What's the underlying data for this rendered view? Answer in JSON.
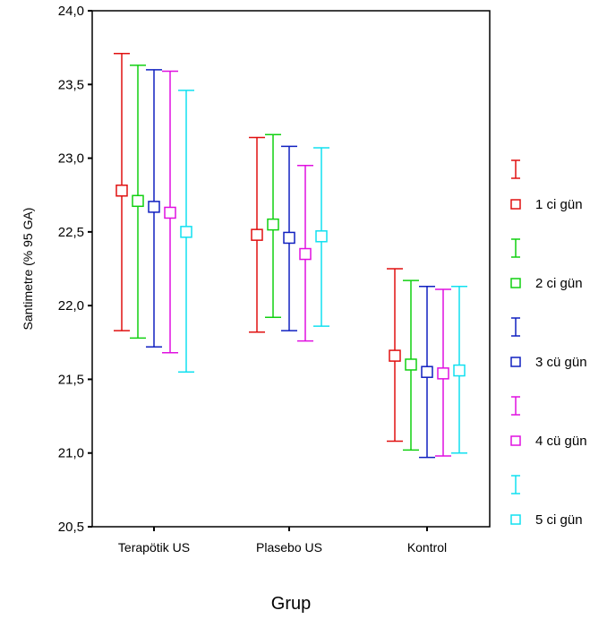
{
  "chart_data": {
    "type": "errorbar",
    "xlabel": "Grup",
    "ylabel": "Santimetre (% 95 GA)",
    "categories": [
      "Terapötik US",
      "Plasebo US",
      "Kontrol"
    ],
    "ylim": [
      20.5,
      24.0
    ],
    "yticks": [
      "20,5",
      "21,0",
      "21,5",
      "22,0",
      "22,5",
      "23,0",
      "23,5",
      "24,0"
    ],
    "grid": false,
    "legend_position": "right",
    "series": [
      {
        "name": "1 ci gün",
        "color": "#e01010",
        "mean": [
          22.78,
          22.48,
          21.66
        ],
        "lower": [
          21.83,
          21.82,
          21.08
        ],
        "upper": [
          23.71,
          23.14,
          22.25
        ]
      },
      {
        "name": "2 ci gün",
        "color": "#10d010",
        "mean": [
          22.71,
          22.55,
          21.6
        ],
        "lower": [
          21.78,
          21.92,
          21.02
        ],
        "upper": [
          23.63,
          23.16,
          22.17
        ]
      },
      {
        "name": "3 cü gün",
        "color": "#1020c0",
        "mean": [
          22.67,
          22.46,
          21.55
        ],
        "lower": [
          21.72,
          21.83,
          20.97
        ],
        "upper": [
          23.6,
          23.08,
          22.13
        ]
      },
      {
        "name": "4 cü gün",
        "color": "#e010e0",
        "mean": [
          22.63,
          22.35,
          21.54
        ],
        "lower": [
          21.68,
          21.76,
          20.98
        ],
        "upper": [
          23.59,
          22.95,
          22.11
        ]
      },
      {
        "name": "5 ci gün",
        "color": "#10e0f0",
        "mean": [
          22.5,
          22.47,
          21.56
        ],
        "lower": [
          21.55,
          21.86,
          21.0
        ],
        "upper": [
          23.46,
          23.07,
          22.13
        ]
      }
    ]
  }
}
